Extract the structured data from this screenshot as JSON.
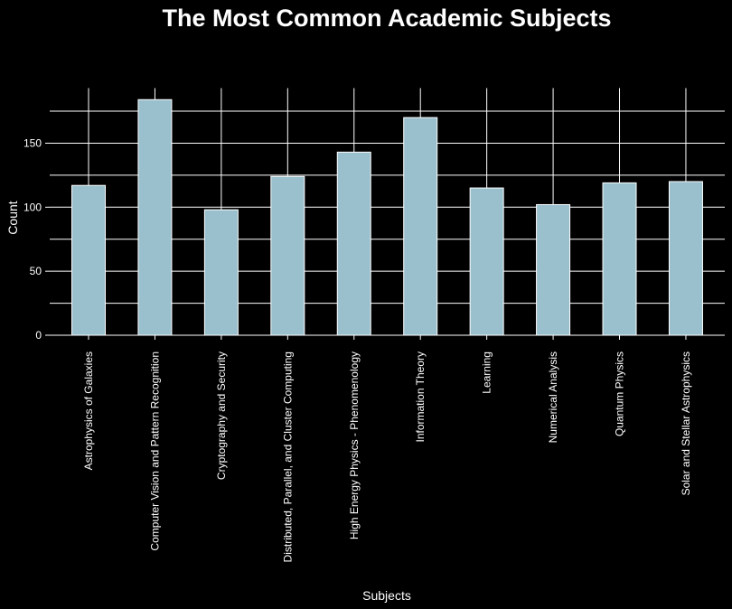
{
  "chart_data": {
    "type": "bar",
    "title": "The Most Common Academic Subjects",
    "xlabel": "Subjects",
    "ylabel": "Count",
    "categories": [
      "Astrophysics of Galaxies",
      "Computer Vision and Pattern Recognition",
      "Cryptography and Security",
      "Distributed, Parallel, and Cluster Computing",
      "High Energy Physics - Phenomenology",
      "Information Theory",
      "Learning",
      "Numerical Analysis",
      "Quantum Physics",
      "Solar and Stellar Astrophysics"
    ],
    "values": [
      117,
      184,
      98,
      124,
      143,
      170,
      115,
      102,
      119,
      120
    ],
    "yticks": [
      0,
      50,
      100,
      150
    ],
    "ylim": [
      0,
      193
    ],
    "grid": true,
    "bar_color": "#9ABFCD",
    "background": "#000000",
    "foreground": "#FFFFFF"
  }
}
